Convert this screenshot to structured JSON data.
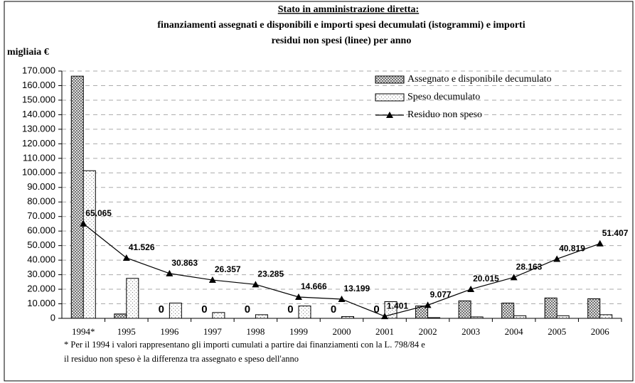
{
  "chart_data": {
    "type": "bar_line",
    "title": "Stato in amministrazione diretta:",
    "subtitle": [
      "finanziamenti assegnati e disponibili e importi spesi decumulati (istogrammi) e importi",
      "residui non spesi (linee) per anno"
    ],
    "y_label": "migliaia €",
    "note": [
      "* Per il 1994 i valori rappresentano gli importi cumulati a partire dai finanziamenti con la L. 798/84 e",
      "il residuo non speso è la differenza tra assegnato e speso dell'anno"
    ],
    "categories": [
      "1994*",
      "1995",
      "1996",
      "1997",
      "1998",
      "1999",
      "2000",
      "2001",
      "2002",
      "2003",
      "2004",
      "2005",
      "2006"
    ],
    "series": [
      {
        "name": "Assegnato e disponibile decumulato",
        "kind": "bar",
        "pattern": "crosshatch",
        "color": "#000000",
        "values": [
          166500,
          3000,
          0,
          0,
          0,
          0,
          0,
          0,
          8500,
          12000,
          10500,
          14000,
          13500
        ],
        "value_labels": [
          null,
          null,
          "0",
          "0",
          "0",
          "0",
          "0",
          "0",
          null,
          null,
          null,
          null,
          null
        ]
      },
      {
        "name": "Speso decumulato",
        "kind": "bar",
        "pattern": "dots",
        "color": "#000000",
        "values": [
          101500,
          27500,
          10500,
          4000,
          2500,
          8500,
          1200,
          11500,
          500,
          1000,
          1800,
          1800,
          2500
        ]
      },
      {
        "name": "Residuo non speso",
        "kind": "line",
        "marker": "triangle",
        "color": "#000000",
        "values": [
          65065,
          41526,
          30863,
          26357,
          23285,
          14666,
          13199,
          1401,
          9077,
          20015,
          28163,
          40819,
          51407
        ],
        "value_labels": [
          "65.065",
          "41.526",
          "30.863",
          "26.357",
          "23.285",
          "14.666",
          "13.199",
          "1.401",
          "9.077",
          "20.015",
          "28.163",
          "40.819",
          "51.407"
        ]
      }
    ],
    "ylim": [
      0,
      170000
    ],
    "yticks": [
      0,
      {
        "value": 10000,
        "label": "10.000"
      },
      {
        "value": 20000,
        "label": "20.000"
      },
      {
        "value": 30000,
        "label": "30.000"
      },
      {
        "value": 40000,
        "label": "40.000"
      },
      {
        "value": 50000,
        "label": "50.000"
      },
      {
        "value": 60000,
        "label": "60.000"
      },
      {
        "value": 70000,
        "label": "70.000"
      },
      {
        "value": 80000,
        "label": "80.000"
      },
      {
        "value": 90000,
        "label": "90.000"
      },
      {
        "value": 100000,
        "label": "100.000"
      },
      {
        "value": 110000,
        "label": "110.000"
      },
      {
        "value": 120000,
        "label": "120.000"
      },
      {
        "value": 130000,
        "label": "130.000"
      },
      {
        "value": 140000,
        "label": "140.000"
      },
      {
        "value": 150000,
        "label": "150.000"
      },
      {
        "value": 160000,
        "label": "160.000"
      },
      {
        "value": 170000,
        "label": "170.000"
      }
    ],
    "grid": true,
    "legend": "top-right"
  }
}
